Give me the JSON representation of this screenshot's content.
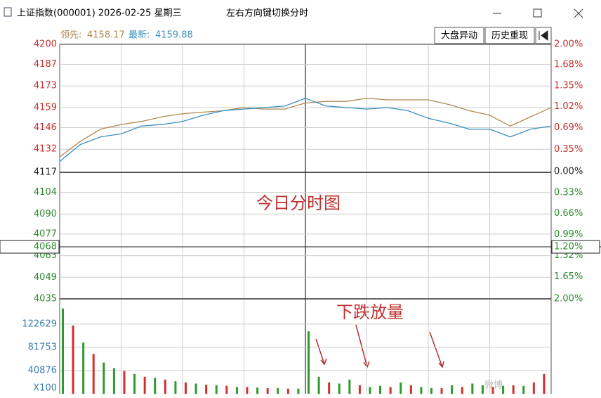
{
  "window": {
    "title": "上证指数(000001) 2026-02-25 星期三",
    "hint": "左右方向键切换分时",
    "buttons": [
      "大盘异动",
      "历史重现"
    ]
  },
  "info": {
    "lead_label": "领先:",
    "lead_value": "4158.17",
    "last_label": "最新:",
    "last_value": "4159.88"
  },
  "cursor": {
    "price_label": "4068",
    "pct_label": "1.20%"
  },
  "annotations": [
    "今日分时图",
    "下跌放量"
  ],
  "chart_data": [
    {
      "type": "line",
      "xlim": [
        0,
        240
      ],
      "ylim": [
        4035,
        4200
      ],
      "yticks": [
        4200,
        4187,
        4173,
        4159,
        4146,
        4132,
        4117,
        4104,
        4090,
        4077,
        4063,
        4049,
        4035
      ],
      "y2lim": [
        -2,
        2
      ],
      "y2ticks": [
        {
          "value": 2,
          "label": "2.00%"
        },
        {
          "value": 1.68,
          "label": "1.68%"
        },
        {
          "value": 1.35,
          "label": "1.35%"
        },
        {
          "value": 1.02,
          "label": "1.02%"
        },
        {
          "value": 0.69,
          "label": "0.69%"
        },
        {
          "value": 0.35,
          "label": "0.35%"
        },
        {
          "value": 0,
          "label": "0.00%"
        },
        {
          "value": -0.33,
          "label": "0.33%"
        },
        {
          "value": -0.66,
          "label": "0.66%"
        },
        {
          "value": -0.99,
          "label": "0.99%"
        },
        {
          "value": -1.32,
          "label": "1.32%"
        },
        {
          "value": -1.65,
          "label": "1.65%"
        },
        {
          "value": -2,
          "label": "2.00%"
        }
      ],
      "x": [
        0,
        10,
        20,
        30,
        40,
        50,
        60,
        70,
        80,
        90,
        100,
        110,
        120,
        130,
        140,
        150,
        160,
        170,
        180,
        190,
        200,
        210,
        220,
        230,
        240
      ],
      "series": [
        {
          "name": "领先",
          "color": "#b08850",
          "values": [
            4127,
            4137,
            4145,
            4148,
            4150,
            4153,
            4155,
            4156,
            4157,
            4159,
            4158,
            4158,
            4162,
            4163,
            4163,
            4165,
            4164,
            4164,
            4164,
            4161,
            4157,
            4154,
            4147,
            4153,
            4159
          ]
        },
        {
          "name": "最新",
          "color": "#3a8fc0",
          "values": [
            4124,
            4135,
            4140,
            4142,
            4147,
            4148,
            4150,
            4154,
            4157,
            4158,
            4159,
            4160,
            4165,
            4160,
            4159,
            4158,
            4159,
            4157,
            4152,
            4149,
            4145,
            4145,
            4140,
            4145,
            4147
          ]
        }
      ]
    },
    {
      "type": "bar",
      "xlim": [
        0,
        240
      ],
      "ylim": [
        0,
        167000
      ],
      "yticks": [
        122629,
        81753,
        40876
      ],
      "unit_label": "X100",
      "x": [
        0,
        5,
        10,
        15,
        20,
        25,
        30,
        35,
        40,
        45,
        50,
        55,
        60,
        65,
        70,
        75,
        80,
        85,
        90,
        95,
        100,
        105,
        110,
        115,
        120,
        125,
        130,
        135,
        140,
        145,
        150,
        155,
        160,
        165,
        170,
        175,
        180,
        185,
        190,
        195,
        200,
        205,
        210,
        215,
        220,
        225,
        230,
        235
      ],
      "values": [
        150000,
        120000,
        90000,
        70000,
        55000,
        45000,
        40000,
        35000,
        30000,
        28000,
        25000,
        22000,
        20000,
        18000,
        16000,
        15000,
        14000,
        12000,
        12000,
        11000,
        10000,
        10000,
        9000,
        9000,
        110000,
        30000,
        20000,
        18000,
        25000,
        15000,
        12000,
        14000,
        12000,
        20000,
        15000,
        12000,
        10000,
        10000,
        15000,
        12000,
        18000,
        15000,
        12000,
        14000,
        15000,
        14000,
        20000,
        35000
      ],
      "colors": [
        "#2e9a2e",
        "#d03030",
        "#2e9a2e",
        "#d03030",
        "#2e9a2e",
        "#2e9a2e",
        "#d03030",
        "#2e9a2e",
        "#d03030",
        "#2e9a2e",
        "#d03030",
        "#2e9a2e",
        "#d03030",
        "#2e9a2e",
        "#d03030",
        "#2e9a2e",
        "#d03030",
        "#2e9a2e",
        "#d03030",
        "#2e9a2e",
        "#d03030",
        "#2e9a2e",
        "#d03030",
        "#2e9a2e",
        "#2e9a2e",
        "#2e9a2e",
        "#d03030",
        "#2e9a2e",
        "#2e9a2e",
        "#d03030",
        "#2e9a2e",
        "#2e9a2e",
        "#d03030",
        "#2e9a2e",
        "#d03030",
        "#2e9a2e",
        "#2e9a2e",
        "#d03030",
        "#2e9a2e",
        "#d03030",
        "#2e9a2e",
        "#2e9a2e",
        "#d03030",
        "#2e9a2e",
        "#d03030",
        "#2e9a2e",
        "#d03030",
        "#d03030"
      ]
    }
  ]
}
